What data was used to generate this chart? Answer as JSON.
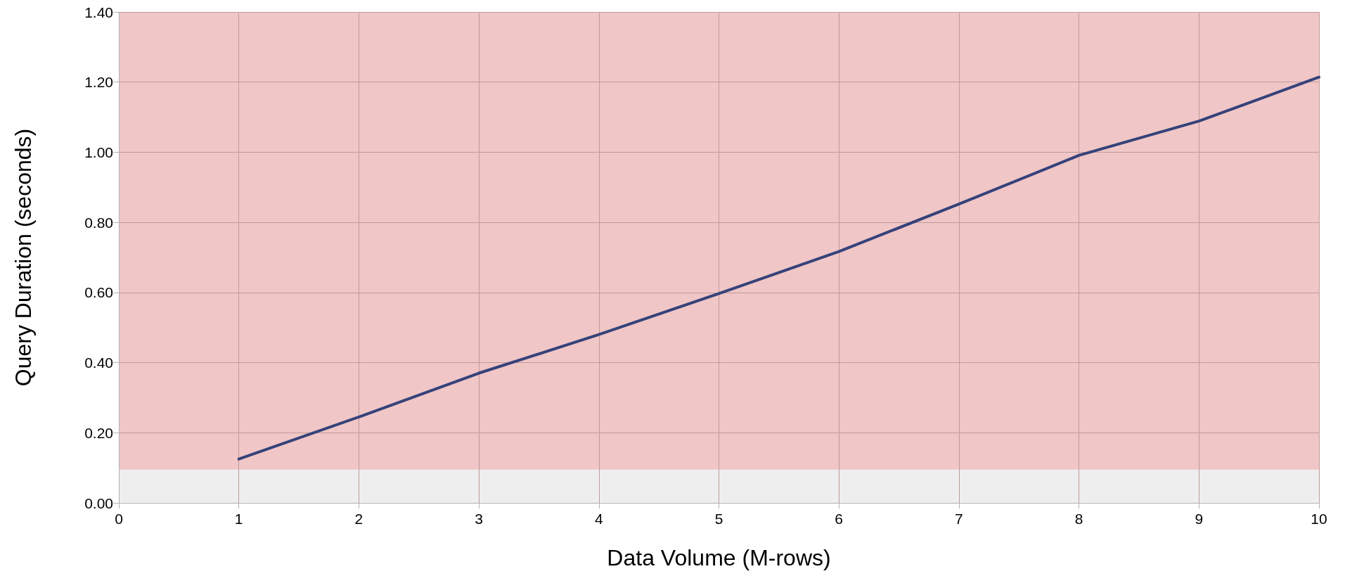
{
  "chart_data": {
    "type": "line",
    "xlabel": "Data Volume (M-rows)",
    "ylabel": "Query Duration (seconds)",
    "x": [
      1,
      2,
      3,
      4,
      5,
      6,
      7,
      8,
      9,
      10
    ],
    "series": [
      {
        "color": "#35427a",
        "values": [
          0.125,
          0.245,
          0.37,
          0.48,
          0.597,
          0.717,
          0.852,
          0.991,
          1.089,
          1.214
        ]
      }
    ],
    "xlim": [
      0,
      10
    ],
    "xticks": [
      0,
      1,
      2,
      3,
      4,
      5,
      6,
      7,
      8,
      9,
      10
    ],
    "ylim": [
      0,
      1.4
    ],
    "yticks": [
      {
        "value": 0,
        "label": "0.00"
      },
      {
        "value": 0.2,
        "label": "0.20"
      },
      {
        "value": 0.4,
        "label": "0.40"
      },
      {
        "value": 0.6,
        "label": "0.60"
      },
      {
        "value": 0.8,
        "label": "0.80"
      },
      {
        "value": 1,
        "label": "1.00"
      },
      {
        "value": 1.2,
        "label": "1.20"
      },
      {
        "value": 1.4,
        "label": "1.40"
      }
    ],
    "bands": [
      {
        "axis": "y",
        "from": 0,
        "to": 0.095,
        "color": "#eeeeee"
      },
      {
        "axis": "y",
        "from": 0.095,
        "to": 1.4,
        "color": "#f0c6c6"
      }
    ],
    "grid": true,
    "marker": "none",
    "line_style": "solid"
  }
}
